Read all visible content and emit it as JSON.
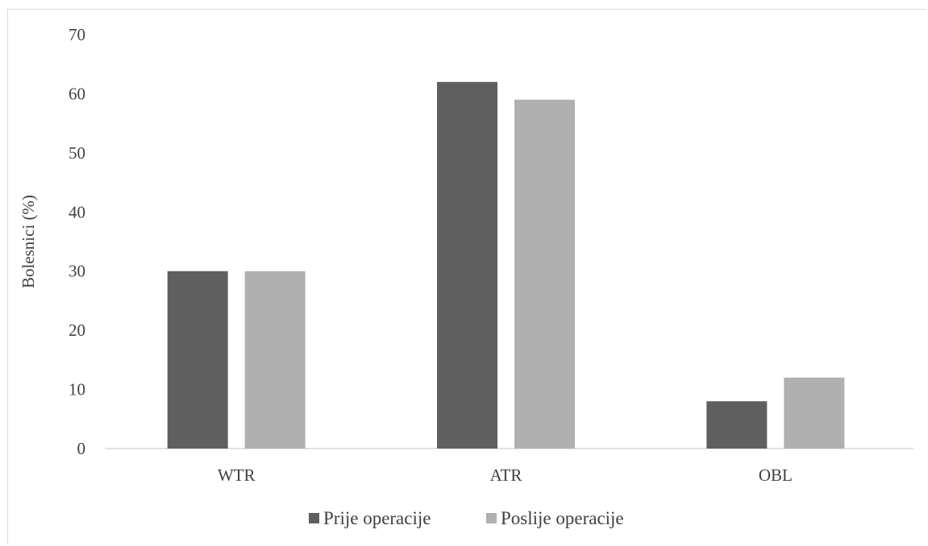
{
  "chart_data": {
    "type": "bar",
    "title": "",
    "xlabel": "",
    "ylabel": "Bolesnici (%)",
    "categories": [
      "WTR",
      "ATR",
      "OBL"
    ],
    "series": [
      {
        "name": "Prije operacije",
        "values": [
          30,
          62,
          8
        ],
        "color": "#5f5f5f"
      },
      {
        "name": "Poslije operacije",
        "values": [
          30,
          59,
          12
        ],
        "color": "#b0b0b0"
      }
    ],
    "ylim": [
      0,
      70
    ],
    "yticks": [
      "0",
      "10",
      "20",
      "30",
      "40",
      "50",
      "60",
      "70"
    ],
    "grid": false,
    "legend": "bottom-center"
  }
}
